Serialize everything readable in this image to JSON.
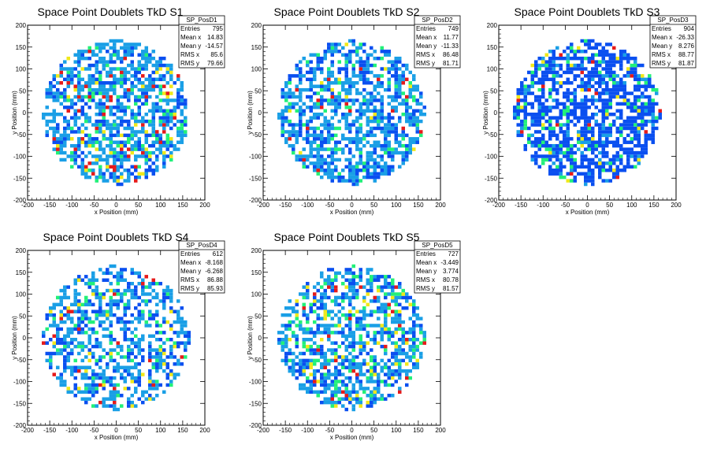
{
  "chart_data": [
    {
      "type": "heatmap",
      "title": "Space Point Doublets TkD S1",
      "xlabel": "x Position (mm)",
      "ylabel": "y Position (mm)",
      "xlim": [
        -200,
        200
      ],
      "ylim": [
        -200,
        200
      ],
      "xticks": [
        -200,
        -150,
        -100,
        -50,
        0,
        50,
        100,
        150,
        200
      ],
      "yticks": [
        -200,
        -150,
        -100,
        -50,
        0,
        50,
        100,
        150,
        200
      ],
      "stats": {
        "name": "SP_PosD1",
        "rows": [
          [
            "Entries",
            "795"
          ],
          [
            "Mean x",
            "14.83"
          ],
          [
            "Mean y",
            "-14.57"
          ],
          [
            "RMS x",
            "85.6"
          ],
          [
            "RMS y",
            "79.66"
          ]
        ]
      },
      "disk_radius": 165,
      "fill_fraction": 0.62,
      "palette_weights": [
        0.55,
        0.25,
        0.1,
        0.05,
        0.05
      ],
      "seed": 11
    },
    {
      "type": "heatmap",
      "title": "Space Point Doublets TkD S2",
      "xlabel": "x Position (mm)",
      "ylabel": "y Position (mm)",
      "xlim": [
        -200,
        200
      ],
      "ylim": [
        -200,
        200
      ],
      "xticks": [
        -200,
        -150,
        -100,
        -50,
        0,
        50,
        100,
        150,
        200
      ],
      "yticks": [
        -200,
        -150,
        -100,
        -50,
        0,
        50,
        100,
        150,
        200
      ],
      "stats": {
        "name": "SP_PosD2",
        "rows": [
          [
            "Entries",
            "749"
          ],
          [
            "Mean x",
            "11.77"
          ],
          [
            "Mean y",
            "-11.33"
          ],
          [
            "RMS x",
            "86.48"
          ],
          [
            "RMS y",
            "81.71"
          ]
        ]
      },
      "disk_radius": 165,
      "fill_fraction": 0.6,
      "palette_weights": [
        0.6,
        0.28,
        0.08,
        0.02,
        0.02
      ],
      "seed": 23
    },
    {
      "type": "heatmap",
      "title": "Space Point Doublets TkD S3",
      "xlabel": "x Position (mm)",
      "ylabel": "y Position (mm)",
      "xlim": [
        -200,
        200
      ],
      "ylim": [
        -200,
        200
      ],
      "xticks": [
        -200,
        -150,
        -100,
        -50,
        0,
        50,
        100,
        150,
        200
      ],
      "yticks": [
        -200,
        -150,
        -100,
        -50,
        0,
        50,
        100,
        150,
        200
      ],
      "stats": {
        "name": "SP_PosD3",
        "rows": [
          [
            "Entries",
            "904"
          ],
          [
            "Mean x",
            "-26.33"
          ],
          [
            "Mean y",
            "8.276"
          ],
          [
            "RMS x",
            "88.77"
          ],
          [
            "RMS y",
            "81.87"
          ]
        ]
      },
      "disk_radius": 165,
      "fill_fraction": 0.66,
      "palette_weights": [
        0.1,
        0.75,
        0.1,
        0.03,
        0.02
      ],
      "seed": 37
    },
    {
      "type": "heatmap",
      "title": "Space Point Doublets TkD S4",
      "xlabel": "x Position (mm)",
      "ylabel": "y Position (mm)",
      "xlim": [
        -200,
        200
      ],
      "ylim": [
        -200,
        200
      ],
      "xticks": [
        -200,
        -150,
        -100,
        -50,
        0,
        50,
        100,
        150,
        200
      ],
      "yticks": [
        -200,
        -150,
        -100,
        -50,
        0,
        50,
        100,
        150,
        200
      ],
      "stats": {
        "name": "SP_PosD4",
        "rows": [
          [
            "Entries",
            "612"
          ],
          [
            "Mean x",
            "-8.168"
          ],
          [
            "Mean y",
            "-6.268"
          ],
          [
            "RMS x",
            "86.88"
          ],
          [
            "RMS y",
            "85.93"
          ]
        ]
      },
      "disk_radius": 165,
      "fill_fraction": 0.5,
      "palette_weights": [
        0.55,
        0.3,
        0.08,
        0.05,
        0.02
      ],
      "seed": 41
    },
    {
      "type": "heatmap",
      "title": "Space Point Doublets TkD S5",
      "xlabel": "x Position (mm)",
      "ylabel": "y Position (mm)",
      "xlim": [
        -200,
        200
      ],
      "ylim": [
        -200,
        200
      ],
      "xticks": [
        -200,
        -150,
        -100,
        -50,
        0,
        50,
        100,
        150,
        200
      ],
      "yticks": [
        -200,
        -150,
        -100,
        -50,
        0,
        50,
        100,
        150,
        200
      ],
      "stats": {
        "name": "SP_PosD5",
        "rows": [
          [
            "Entries",
            "727"
          ],
          [
            "Mean x",
            "-3.449"
          ],
          [
            "Mean y",
            "3.774"
          ],
          [
            "RMS x",
            "80.78"
          ],
          [
            "RMS y",
            "81.57"
          ]
        ]
      },
      "disk_radius": 165,
      "fill_fraction": 0.56,
      "palette_weights": [
        0.5,
        0.25,
        0.15,
        0.07,
        0.03
      ],
      "seed": 53
    }
  ],
  "palette": [
    "#1a9fe6",
    "#0a4ff0",
    "#22f07a",
    "#f0e81a",
    "#e61a1a"
  ],
  "colors": {
    "frame": "#000000",
    "background": "#ffffff"
  }
}
